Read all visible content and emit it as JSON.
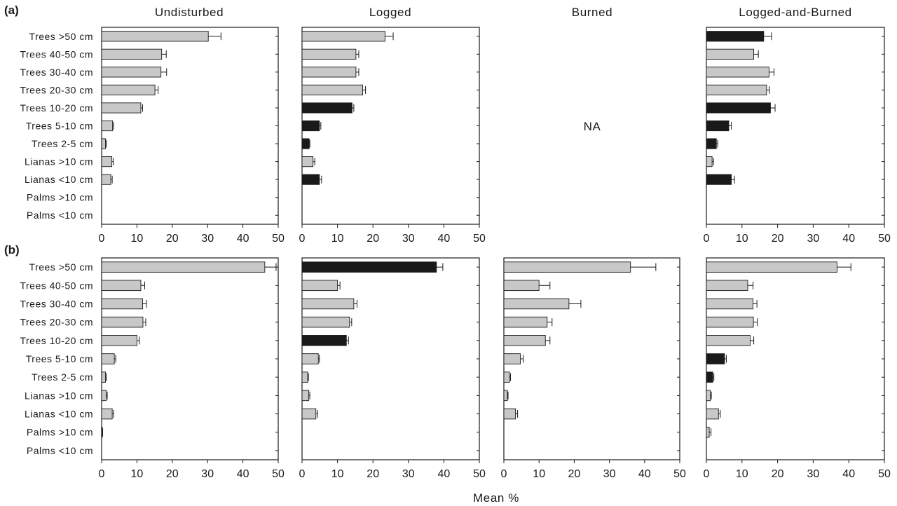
{
  "figure": {
    "xlabel": "Mean %",
    "row_labels": [
      "(a)",
      "(b)"
    ],
    "column_titles": [
      "Undisturbed",
      "Logged",
      "Burned",
      "Logged-and-Burned"
    ],
    "na_text": "NA",
    "colors": {
      "bar_default": "#c8c8c8",
      "bar_highlight": "#1a1a1a",
      "axis": "#1a1a1a"
    }
  },
  "chart_data": [
    {
      "type": "bar",
      "orientation": "horizontal",
      "row": "(a)",
      "title": "Undisturbed",
      "xlim": [
        0,
        50
      ],
      "xticks": [
        0,
        10,
        20,
        30,
        40,
        50
      ],
      "categories": [
        "Trees >50 cm",
        "Trees 40-50 cm",
        "Trees 30-40 cm",
        "Trees 20-30 cm",
        "Trees 10-20 cm",
        "Trees 5-10 cm",
        "Trees 2-5 cm",
        "Lianas >10 cm",
        "Lianas <10 cm",
        "Palms >10 cm",
        "Palms <10 cm"
      ],
      "values": [
        30.2,
        17.0,
        16.8,
        15.1,
        11.1,
        3.1,
        1.1,
        2.9,
        2.6,
        0,
        0
      ],
      "errors": [
        3.6,
        1.3,
        1.6,
        0.9,
        0.5,
        0.3,
        0.2,
        0.4,
        0.4,
        0,
        0
      ],
      "highlight": [
        false,
        false,
        false,
        false,
        false,
        false,
        false,
        false,
        false,
        false,
        false
      ]
    },
    {
      "type": "bar",
      "orientation": "horizontal",
      "row": "(a)",
      "title": "Logged",
      "xlim": [
        0,
        50
      ],
      "xticks": [
        0,
        10,
        20,
        30,
        40,
        50
      ],
      "categories": [
        "Trees >50 cm",
        "Trees 40-50 cm",
        "Trees 30-40 cm",
        "Trees 20-30 cm",
        "Trees 10-20 cm",
        "Trees 5-10 cm",
        "Trees 2-5 cm",
        "Lianas >10 cm",
        "Lianas <10 cm",
        "Palms >10 cm",
        "Palms <10 cm"
      ],
      "values": [
        23.4,
        15.2,
        15.2,
        17.1,
        14.1,
        4.9,
        2.0,
        3.1,
        4.9,
        0,
        0
      ],
      "errors": [
        2.3,
        0.8,
        0.8,
        0.8,
        0.5,
        0.4,
        0.2,
        0.5,
        0.6,
        0,
        0
      ],
      "highlight": [
        false,
        false,
        false,
        false,
        true,
        true,
        true,
        false,
        true,
        false,
        false
      ]
    },
    {
      "type": "bar",
      "orientation": "horizontal",
      "row": "(a)",
      "title": "Burned",
      "not_available": true,
      "categories": [],
      "values": []
    },
    {
      "type": "bar",
      "orientation": "horizontal",
      "row": "(a)",
      "title": "Logged-and-Burned",
      "xlim": [
        0,
        50
      ],
      "xticks": [
        0,
        10,
        20,
        30,
        40,
        50
      ],
      "categories": [
        "Trees >50 cm",
        "Trees 40-50 cm",
        "Trees 30-40 cm",
        "Trees 20-30 cm",
        "Trees 10-20 cm",
        "Trees 5-10 cm",
        "Trees 2-5 cm",
        "Lianas >10 cm",
        "Lianas <10 cm",
        "Palms >10 cm",
        "Palms <10 cm"
      ],
      "values": [
        16.1,
        13.3,
        17.6,
        16.9,
        18.0,
        6.3,
        2.8,
        1.6,
        7.0,
        0,
        0
      ],
      "errors": [
        2.2,
        1.3,
        1.4,
        0.8,
        1.3,
        0.7,
        0.4,
        0.4,
        0.9,
        0,
        0
      ],
      "highlight": [
        true,
        false,
        false,
        false,
        true,
        true,
        true,
        false,
        true,
        false,
        false
      ]
    },
    {
      "type": "bar",
      "orientation": "horizontal",
      "row": "(b)",
      "title": "Undisturbed",
      "xlim": [
        0,
        50
      ],
      "xticks": [
        0,
        10,
        20,
        30,
        40,
        50
      ],
      "categories": [
        "Trees >50 cm",
        "Trees 40-50 cm",
        "Trees 30-40 cm",
        "Trees 20-30 cm",
        "Trees 10-20 cm",
        "Trees 5-10 cm",
        "Trees 2-5 cm",
        "Lianas >10 cm",
        "Lianas <10 cm",
        "Palms >10 cm",
        "Palms <10 cm"
      ],
      "values": [
        46.2,
        11.1,
        11.6,
        11.7,
        10.0,
        3.6,
        1.1,
        1.3,
        3.0,
        0.2,
        0
      ],
      "errors": [
        3.2,
        1.1,
        1.1,
        0.8,
        0.7,
        0.4,
        0.2,
        0.3,
        0.4,
        0.1,
        0
      ],
      "highlight": [
        false,
        false,
        false,
        false,
        false,
        false,
        false,
        false,
        false,
        false,
        false
      ]
    },
    {
      "type": "bar",
      "orientation": "horizontal",
      "row": "(b)",
      "title": "Logged",
      "xlim": [
        0,
        50
      ],
      "xticks": [
        0,
        10,
        20,
        30,
        40,
        50
      ],
      "categories": [
        "Trees >50 cm",
        "Trees 40-50 cm",
        "Trees 30-40 cm",
        "Trees 20-30 cm",
        "Trees 10-20 cm",
        "Trees 5-10 cm",
        "Trees 2-5 cm",
        "Lianas >10 cm",
        "Lianas <10 cm",
        "Palms >10 cm",
        "Palms <10 cm"
      ],
      "values": [
        37.9,
        10.0,
        14.6,
        13.4,
        12.5,
        4.6,
        1.6,
        1.9,
        3.9,
        0,
        0
      ],
      "errors": [
        1.8,
        0.7,
        0.9,
        0.6,
        0.6,
        0.3,
        0.2,
        0.3,
        0.5,
        0,
        0
      ],
      "highlight": [
        true,
        false,
        false,
        false,
        true,
        false,
        false,
        false,
        false,
        false,
        false
      ]
    },
    {
      "type": "bar",
      "orientation": "horizontal",
      "row": "(b)",
      "title": "Burned",
      "xlim": [
        0,
        50
      ],
      "xticks": [
        0,
        10,
        20,
        30,
        40,
        50
      ],
      "categories": [
        "Trees >50 cm",
        "Trees 40-50 cm",
        "Trees 30-40 cm",
        "Trees 20-30 cm",
        "Trees 10-20 cm",
        "Trees 5-10 cm",
        "Trees 2-5 cm",
        "Lianas >10 cm",
        "Lianas <10 cm",
        "Palms >10 cm",
        "Palms <10 cm"
      ],
      "values": [
        36.0,
        10.0,
        18.5,
        12.3,
        11.8,
        4.7,
        1.6,
        1.0,
        3.3,
        0,
        0
      ],
      "errors": [
        7.2,
        3.1,
        3.4,
        1.4,
        1.3,
        0.8,
        0.3,
        0.2,
        0.6,
        0,
        0
      ],
      "highlight": [
        false,
        false,
        false,
        false,
        false,
        false,
        false,
        false,
        false,
        false,
        false
      ]
    },
    {
      "type": "bar",
      "orientation": "horizontal",
      "row": "(b)",
      "title": "Logged-and-Burned",
      "xlim": [
        0,
        50
      ],
      "xticks": [
        0,
        10,
        20,
        30,
        40,
        50
      ],
      "categories": [
        "Trees >50 cm",
        "Trees 40-50 cm",
        "Trees 30-40 cm",
        "Trees 20-30 cm",
        "Trees 10-20 cm",
        "Trees 5-10 cm",
        "Trees 2-5 cm",
        "Lianas >10 cm",
        "Lianas <10 cm",
        "Palms >10 cm",
        "Palms <10 cm"
      ],
      "values": [
        36.7,
        11.6,
        13.1,
        13.2,
        12.3,
        5.1,
        1.8,
        1.1,
        3.4,
        0.8,
        0
      ],
      "errors": [
        3.9,
        1.5,
        1.1,
        1.1,
        1.0,
        0.5,
        0.3,
        0.3,
        0.5,
        0.5,
        0
      ],
      "highlight": [
        false,
        false,
        false,
        false,
        false,
        true,
        true,
        false,
        false,
        false,
        false
      ]
    }
  ]
}
